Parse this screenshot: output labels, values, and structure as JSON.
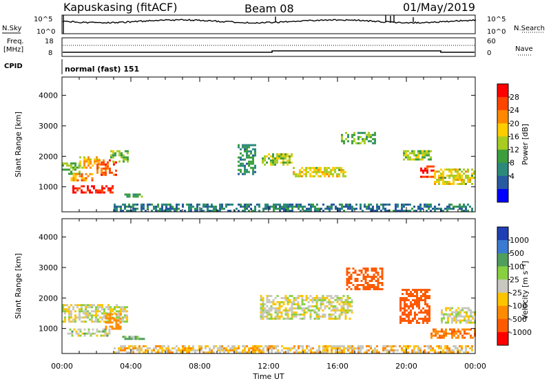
{
  "header": {
    "title": "Kapuskasing (fitACF)",
    "beam": "Beam 08",
    "date": "01/May/2019"
  },
  "top_panels": {
    "nsky_label": "N.Sky",
    "nsearch_label": "N.Search",
    "noise_ticks": [
      "10^5",
      "10^0"
    ],
    "freq_label_1": "Freq.",
    "freq_label_2": "[MHz]",
    "freq_ticks": [
      "18",
      "8"
    ],
    "nave_label": "Nave",
    "nave_ticks": [
      "60",
      "0"
    ],
    "cpid_label": "CPID",
    "cpid_text": "normal (fast) 151"
  },
  "axes": {
    "x_label": "Time UT",
    "x_ticks": [
      "00:00",
      "04:00",
      "08:00",
      "12:00",
      "16:00",
      "20:00",
      "00:00"
    ],
    "y_label": "Slant Range [km]",
    "y_ticks": [
      "1000",
      "2000",
      "3000",
      "4000"
    ]
  },
  "colorbars": {
    "power_label": "Power [dB]",
    "power_ticks": [
      "28",
      "24",
      "20",
      "16",
      "12",
      "8",
      "4"
    ],
    "power_colors": [
      "#ff0000",
      "#ff4400",
      "#ff8800",
      "#ffcc00",
      "#a8cc22",
      "#3c9e3c",
      "#2c8a7a",
      "#285aa0",
      "#0000ff"
    ],
    "velocity_label": "Velocity [m s⁻¹]",
    "velocity_ticks": [
      "1000",
      "500",
      "100",
      "25",
      "-25",
      "-100",
      "-500",
      "-1000"
    ],
    "velocity_colors": [
      "#1f3fb4",
      "#3a7ad2",
      "#4f9e5c",
      "#88d040",
      "#c8c8c0",
      "#ffc400",
      "#ff8c00",
      "#ff5a00",
      "#ff0000"
    ]
  },
  "chart_data": [
    {
      "type": "heatmap",
      "name": "Power [dB]",
      "x_range_hours": [
        0,
        24
      ],
      "y_range_km": [
        180,
        4600
      ],
      "regions": [
        {
          "t": [
            0.0,
            1.0
          ],
          "r": [
            1400,
            1800
          ],
          "v": 14
        },
        {
          "t": [
            1.0,
            2.2
          ],
          "r": [
            1600,
            2000
          ],
          "v": 20
        },
        {
          "t": [
            2.0,
            3.2
          ],
          "r": [
            1400,
            1900
          ],
          "v": 26
        },
        {
          "t": [
            0.6,
            3.0
          ],
          "r": [
            780,
            1050
          ],
          "v": 30
        },
        {
          "t": [
            2.8,
            3.8
          ],
          "r": [
            1800,
            2200
          ],
          "v": 14
        },
        {
          "t": [
            0.5,
            1.8
          ],
          "r": [
            1200,
            1450
          ],
          "v": 22
        },
        {
          "t": [
            3.5,
            4.8
          ],
          "r": [
            700,
            780
          ],
          "v": 12
        },
        {
          "t": [
            3.0,
            23.8
          ],
          "r": [
            200,
            450
          ],
          "v": 8
        },
        {
          "t": [
            10.2,
            11.2
          ],
          "r": [
            1400,
            2400
          ],
          "v": 10
        },
        {
          "t": [
            11.6,
            13.4
          ],
          "r": [
            1700,
            2100
          ],
          "v": 16
        },
        {
          "t": [
            13.4,
            16.5
          ],
          "r": [
            1350,
            1650
          ],
          "v": 18
        },
        {
          "t": [
            16.2,
            18.2
          ],
          "r": [
            2400,
            2800
          ],
          "v": 12
        },
        {
          "t": [
            19.8,
            21.4
          ],
          "r": [
            1900,
            2200
          ],
          "v": 16
        },
        {
          "t": [
            20.8,
            21.6
          ],
          "r": [
            1300,
            1700
          ],
          "v": 28
        },
        {
          "t": [
            21.6,
            24.0
          ],
          "r": [
            1100,
            1600
          ],
          "v": 18
        }
      ]
    },
    {
      "type": "heatmap",
      "name": "Velocity [m s-1]",
      "x_range_hours": [
        0,
        24
      ],
      "y_range_km": [
        180,
        4600
      ],
      "regions": [
        {
          "t": [
            0.0,
            3.8
          ],
          "r": [
            1200,
            1800
          ],
          "v": 0
        },
        {
          "t": [
            0.3,
            2.8
          ],
          "r": [
            750,
            1000
          ],
          "v": 10
        },
        {
          "t": [
            2.5,
            3.4
          ],
          "r": [
            1000,
            1500
          ],
          "v": -150
        },
        {
          "t": [
            3.5,
            4.8
          ],
          "r": [
            650,
            760
          ],
          "v": 60
        },
        {
          "t": [
            3.0,
            23.8
          ],
          "r": [
            200,
            450
          ],
          "v": -40
        },
        {
          "t": [
            11.5,
            16.8
          ],
          "r": [
            1300,
            2100
          ],
          "v": 0
        },
        {
          "t": [
            16.5,
            18.6
          ],
          "r": [
            2300,
            3000
          ],
          "v": -600
        },
        {
          "t": [
            19.6,
            21.4
          ],
          "r": [
            1200,
            2300
          ],
          "v": -400
        },
        {
          "t": [
            21.4,
            24.0
          ],
          "r": [
            700,
            1000
          ],
          "v": -300
        },
        {
          "t": [
            22.0,
            24.0
          ],
          "r": [
            1200,
            1700
          ],
          "v": 0
        }
      ]
    }
  ]
}
